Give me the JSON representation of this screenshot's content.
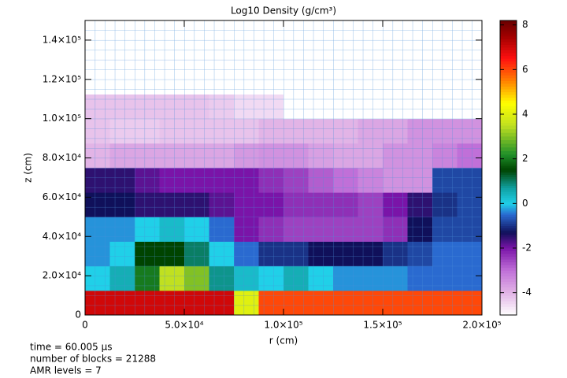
{
  "chart_data": {
    "type": "heatmap",
    "title": "Log10 Density (g/cm³)",
    "xlabel": "r (cm)",
    "ylabel": "z (cm)",
    "xlim": [
      0,
      200000
    ],
    "ylim": [
      0,
      150000
    ],
    "xticks": [
      0,
      {
        "value": 50000,
        "label": "5.0×10⁴"
      },
      {
        "value": 100000,
        "label": "1.0×10⁵"
      },
      {
        "value": 150000,
        "label": "1.5×10⁵"
      },
      {
        "value": 200000,
        "label": "2.0×10⁵"
      }
    ],
    "yticks": [
      0,
      {
        "value": 20000,
        "label": "2.0×10⁴"
      },
      {
        "value": 40000,
        "label": "4.0×10⁴"
      },
      {
        "value": 60000,
        "label": "6.0×10⁴"
      },
      {
        "value": 80000,
        "label": "8.0×10⁴"
      },
      {
        "value": 100000,
        "label": "1.0×10⁵"
      },
      {
        "value": 120000,
        "label": "1.2×10⁵"
      },
      {
        "value": 140000,
        "label": "1.4×10⁵"
      }
    ],
    "clim": [
      -5,
      8.2
    ],
    "cticks": [
      -4,
      -2,
      0,
      2,
      4,
      6,
      8
    ],
    "colormap": [
      {
        "value": -5,
        "color": "#ffffff"
      },
      {
        "value": -4,
        "color": "#e2b4e6"
      },
      {
        "value": -3,
        "color": "#c070d8"
      },
      {
        "value": -2,
        "color": "#7a14a8"
      },
      {
        "value": -1.3,
        "color": "#10105a"
      },
      {
        "value": -0.5,
        "color": "#2a6ad0"
      },
      {
        "value": 0,
        "color": "#20d0e8"
      },
      {
        "value": 0.7,
        "color": "#10a0a0"
      },
      {
        "value": 1.5,
        "color": "#004400"
      },
      {
        "value": 2.2,
        "color": "#20902a"
      },
      {
        "value": 3.5,
        "color": "#c0e020"
      },
      {
        "value": 4.5,
        "color": "#ffff00"
      },
      {
        "value": 5.5,
        "color": "#ff8000"
      },
      {
        "value": 6.5,
        "color": "#ff1010"
      },
      {
        "value": 7.5,
        "color": "#a00000"
      },
      {
        "value": 8.2,
        "color": "#6a0000"
      }
    ],
    "z": [
      [
        7,
        7,
        7,
        7,
        7,
        7,
        4,
        6,
        6,
        6,
        6,
        6,
        6,
        6,
        6,
        6
      ],
      [
        0,
        0.5,
        2,
        3.5,
        3,
        0.8,
        0.3,
        0,
        0.5,
        0,
        -0.3,
        -0.3,
        -0.3,
        -0.5,
        -0.5,
        -0.5
      ],
      [
        -0.3,
        0,
        1.5,
        1.5,
        1,
        0,
        -0.5,
        -1,
        -1,
        -1.3,
        -1.3,
        -1.3,
        -1,
        -0.8,
        -0.5,
        -0.5
      ],
      [
        -0.3,
        -0.3,
        0,
        0.3,
        0,
        -0.5,
        -2,
        -2.3,
        -2.5,
        -2.5,
        -2.5,
        -2.5,
        -2.3,
        -1.3,
        -0.8,
        -0.8
      ],
      [
        -1.3,
        -1.3,
        -1.5,
        -1.5,
        -1.5,
        -1.8,
        -2,
        -2,
        -2.3,
        -2.3,
        -2.3,
        -2.5,
        -2,
        -1.5,
        -1,
        -0.8
      ],
      [
        -1.5,
        -1.5,
        -1.8,
        -2,
        -2,
        -2,
        -2,
        -2.3,
        -2.5,
        -2.8,
        -3,
        -3.3,
        -3.5,
        -3.5,
        -0.8,
        -0.8
      ],
      [
        -4,
        -3.8,
        -3.8,
        -3.8,
        -3.8,
        -3.8,
        -3.6,
        -3.5,
        -3.5,
        -3.7,
        -3.8,
        -3.8,
        -3.5,
        -3.5,
        -3.3,
        -3
      ],
      [
        -4.2,
        -4.3,
        -4.3,
        -4.2,
        -4.2,
        -4.2,
        -4.2,
        -4,
        -4,
        -4,
        -4,
        -3.8,
        -3.8,
        -3.5,
        -3.5,
        -3.5
      ],
      [
        -4.2,
        -4.2,
        -4.2,
        -4.2,
        -4.2,
        -4.3,
        -4.5,
        -4.5,
        -5,
        -5,
        -5,
        -5,
        -5,
        -5,
        -5,
        -5
      ],
      [
        -5,
        -5,
        -5,
        -5,
        -5,
        -5,
        -5,
        -5,
        -5,
        -5,
        -5,
        -5,
        -5,
        -5,
        -5,
        -5
      ],
      [
        -5,
        -5,
        -5,
        -5,
        -5,
        -5,
        -5,
        -5,
        -5,
        -5,
        -5,
        -5,
        -5,
        -5,
        -5,
        -5
      ],
      [
        -5,
        -5,
        -5,
        -5,
        -5,
        -5,
        -5,
        -5,
        -5,
        -5,
        -5,
        -5,
        -5,
        -5,
        -5,
        -5
      ]
    ],
    "footer": [
      "time =  60.005 μs",
      "number of blocks =   21288",
      "AMR levels =     7"
    ]
  }
}
